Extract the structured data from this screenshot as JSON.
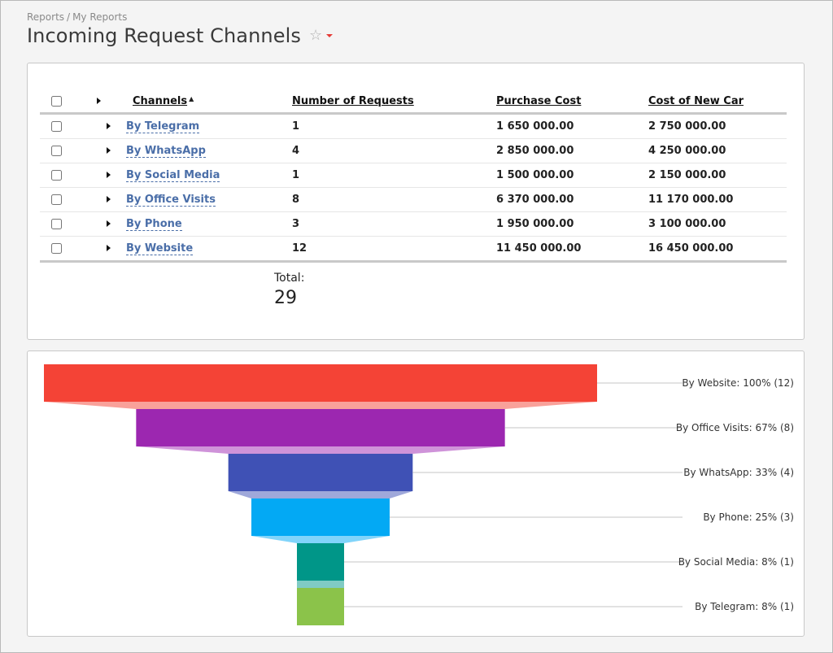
{
  "breadcrumb": {
    "root": "Reports",
    "separator": "/",
    "current": "My Reports"
  },
  "page": {
    "title": "Incoming Request Channels"
  },
  "table": {
    "headers": {
      "channels": "Channels",
      "requests": "Number of Requests",
      "purchase_cost": "Purchase Cost",
      "new_car_cost": "Cost of New Car"
    },
    "rows": [
      {
        "channel": "By Telegram",
        "requests": "1",
        "purchase_cost": "1 650 000.00",
        "new_car_cost": "2 750 000.00"
      },
      {
        "channel": "By WhatsApp",
        "requests": "4",
        "purchase_cost": "2 850 000.00",
        "new_car_cost": "4 250 000.00"
      },
      {
        "channel": "By Social Media",
        "requests": "1",
        "purchase_cost": "1 500 000.00",
        "new_car_cost": "2 150 000.00"
      },
      {
        "channel": "By Office Visits",
        "requests": "8",
        "purchase_cost": "6 370 000.00",
        "new_car_cost": "11 170 000.00"
      },
      {
        "channel": "By Phone",
        "requests": "3",
        "purchase_cost": "1 950 000.00",
        "new_car_cost": "3 100 000.00"
      },
      {
        "channel": "By Website",
        "requests": "12",
        "purchase_cost": "11 450 000.00",
        "new_car_cost": "16 450 000.00"
      }
    ],
    "total_label": "Total:",
    "total_value": "29"
  },
  "chart_data": {
    "type": "funnel",
    "categories": [
      "By Website",
      "By Office Visits",
      "By WhatsApp",
      "By Phone",
      "By Social Media",
      "By Telegram"
    ],
    "values": [
      12,
      8,
      4,
      3,
      1,
      1
    ],
    "percents": [
      100,
      67,
      33,
      25,
      8,
      8
    ],
    "labels": [
      "By Website: 100% (12)",
      "By Office Visits: 67% (8)",
      "By WhatsApp: 33% (4)",
      "By Phone: 25% (3)",
      "By Social Media: 8% (1)",
      "By Telegram: 8% (1)"
    ],
    "colors": [
      "#f44336",
      "#9c27b0",
      "#3f51b5",
      "#03a9f4",
      "#009688",
      "#8bc34a"
    ],
    "neck_colors": [
      "#f9a19a",
      "#cf93d9",
      "#9fa8da",
      "#81d4fa",
      "#80cbc4"
    ],
    "legend": "right"
  },
  "icons": {
    "favorite": "star-outline-icon",
    "menu": "caret-down-icon",
    "expand": "triangle-right-icon"
  }
}
